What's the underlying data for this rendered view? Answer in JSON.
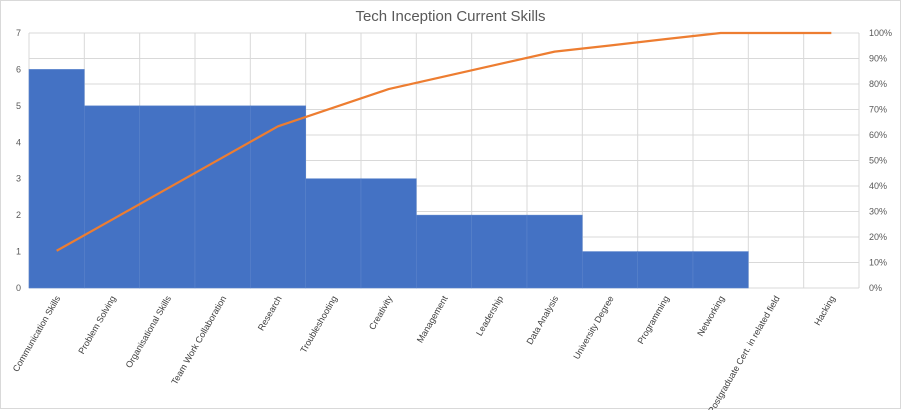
{
  "chart_data": {
    "type": "bar",
    "title": "Tech Inception Current Skills",
    "categories": [
      "Communication Skills",
      "Problem Solving",
      "Organisational Skills",
      "Team Work Collaboration",
      "Research",
      "Troubleshooting",
      "Creativity",
      "Management",
      "Leadership",
      "Data Analysis",
      "University Degree",
      "Programming",
      "Networking",
      "Postgraduate Cert. in related field",
      "Hacking"
    ],
    "series": [
      {
        "type": "bar",
        "values": [
          6,
          5,
          5,
          5,
          5,
          3,
          3,
          2,
          2,
          2,
          1,
          1,
          1,
          0,
          0
        ]
      },
      {
        "type": "line",
        "axis": "right",
        "values": [
          14.6,
          26.8,
          39.0,
          51.2,
          63.4,
          70.7,
          78.0,
          82.9,
          87.8,
          92.7,
          95.1,
          97.6,
          100,
          100,
          100
        ]
      }
    ],
    "ylim": [
      0,
      7
    ],
    "yticks": [
      "0",
      "1",
      "2",
      "3",
      "4",
      "5",
      "6",
      "7"
    ],
    "y2lim": [
      0,
      100
    ],
    "y2ticks": [
      "0%",
      "10%",
      "20%",
      "30%",
      "40%",
      "50%",
      "60%",
      "70%",
      "80%",
      "90%",
      "100%"
    ],
    "grid": true,
    "colors": {
      "bar": "#4472c4",
      "line": "#ed7d31",
      "grid": "#d9d9d9",
      "text": "#595959"
    }
  }
}
